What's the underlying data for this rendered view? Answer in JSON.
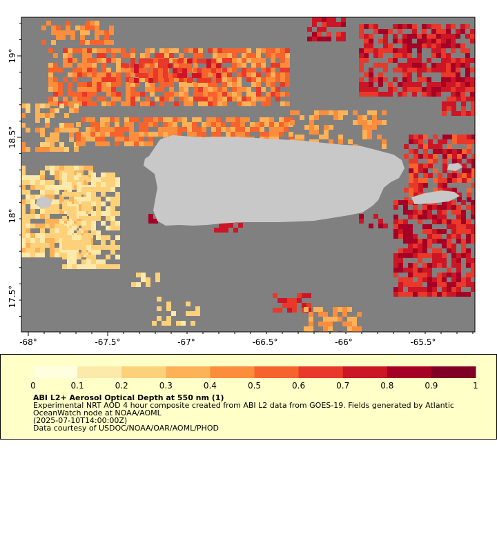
{
  "map": {
    "lat_ticks": [
      "19°",
      "18.5°",
      "18°",
      "17.5°"
    ],
    "lon_ticks": [
      "-68°",
      "-67.5°",
      "-67°",
      "-66.5°",
      "-66°",
      "-65.5°"
    ],
    "colors": {
      "ocean": "#808080",
      "land": "#c8c8c8",
      "legend_bg": "#ffffc8"
    }
  },
  "legend": {
    "ticks": [
      "0",
      "0.1",
      "0.2",
      "0.3",
      "0.4",
      "0.5",
      "0.6",
      "0.7",
      "0.8",
      "0.9",
      "1"
    ],
    "title": "ABI L2+ Aerosol Optical Depth at 550 nm (1)",
    "line1": "Experimental NRT AOD 4 hour composite created from ABI L2 data from GOES-19. Fields generated by Atlantic",
    "line2": "OceanWatch node at NOAA/AOML",
    "line3": "(2025-07-10T14:00:00Z)",
    "line4": "Data courtesy of USDOC/NOAA/OAR/AOML/PHOD",
    "color_stops": [
      "#ffffe0",
      "#fde9a9",
      "#fdd17a",
      "#fdb257",
      "#fb8d3c",
      "#f6632c",
      "#e8392a",
      "#cc1626",
      "#a50026",
      "#800026"
    ]
  }
}
